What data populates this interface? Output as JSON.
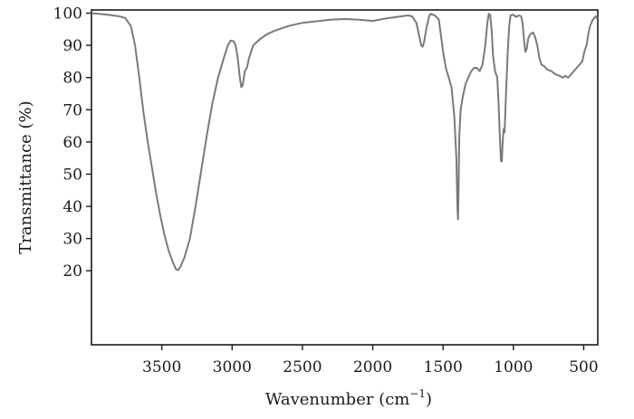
{
  "chart_data": {
    "type": "line",
    "xlabel": "Wavenumber (cm",
    "xlabel_sup": "−1",
    "xlabel_close": ")",
    "ylabel": "Transmittance (%)",
    "xlim": [
      4000,
      400
    ],
    "ylim": [
      -3,
      101
    ],
    "x_reversed": true,
    "grid": false,
    "x_ticks": [
      3500,
      3000,
      2500,
      2000,
      1500,
      1000,
      500
    ],
    "y_ticks": [
      20,
      30,
      40,
      50,
      60,
      70,
      80,
      90,
      100
    ],
    "series": [
      {
        "color": "#7a7a7a",
        "points": [
          [
            4000,
            100
          ],
          [
            3950,
            99.8
          ],
          [
            3900,
            99.6
          ],
          [
            3850,
            99.3
          ],
          [
            3800,
            99
          ],
          [
            3760,
            98.5
          ],
          [
            3720,
            96
          ],
          [
            3690,
            90
          ],
          [
            3660,
            80
          ],
          [
            3630,
            69
          ],
          [
            3600,
            60
          ],
          [
            3570,
            52
          ],
          [
            3540,
            44
          ],
          [
            3510,
            37
          ],
          [
            3480,
            31
          ],
          [
            3450,
            26
          ],
          [
            3420,
            22.5
          ],
          [
            3400,
            20.5
          ],
          [
            3385,
            20.2
          ],
          [
            3370,
            21
          ],
          [
            3340,
            24
          ],
          [
            3300,
            30
          ],
          [
            3260,
            40
          ],
          [
            3220,
            51
          ],
          [
            3180,
            62
          ],
          [
            3140,
            72
          ],
          [
            3100,
            80
          ],
          [
            3060,
            86
          ],
          [
            3030,
            90
          ],
          [
            3010,
            91.5
          ],
          [
            2990,
            91.3
          ],
          [
            2975,
            90
          ],
          [
            2960,
            86
          ],
          [
            2945,
            80
          ],
          [
            2935,
            77
          ],
          [
            2925,
            77.5
          ],
          [
            2910,
            82
          ],
          [
            2895,
            83
          ],
          [
            2880,
            86
          ],
          [
            2850,
            90
          ],
          [
            2800,
            92
          ],
          [
            2750,
            93.5
          ],
          [
            2700,
            94.5
          ],
          [
            2600,
            96
          ],
          [
            2500,
            97
          ],
          [
            2400,
            97.5
          ],
          [
            2300,
            98
          ],
          [
            2200,
            98.2
          ],
          [
            2100,
            98
          ],
          [
            2000,
            97.6
          ],
          [
            1950,
            98
          ],
          [
            1900,
            98.4
          ],
          [
            1850,
            98.7
          ],
          [
            1800,
            99
          ],
          [
            1750,
            99.3
          ],
          [
            1720,
            99
          ],
          [
            1690,
            97
          ],
          [
            1670,
            93
          ],
          [
            1655,
            90
          ],
          [
            1645,
            89.6
          ],
          [
            1635,
            91
          ],
          [
            1620,
            95
          ],
          [
            1600,
            99
          ],
          [
            1590,
            99.8
          ],
          [
            1570,
            99.5
          ],
          [
            1550,
            99
          ],
          [
            1530,
            98
          ],
          [
            1515,
            93
          ],
          [
            1500,
            88
          ],
          [
            1480,
            83
          ],
          [
            1460,
            80
          ],
          [
            1440,
            77
          ],
          [
            1420,
            68
          ],
          [
            1405,
            55
          ],
          [
            1398,
            40
          ],
          [
            1394,
            36
          ],
          [
            1390,
            45
          ],
          [
            1385,
            62
          ],
          [
            1375,
            70
          ],
          [
            1360,
            74
          ],
          [
            1340,
            78
          ],
          [
            1320,
            80
          ],
          [
            1300,
            82
          ],
          [
            1280,
            83
          ],
          [
            1260,
            83
          ],
          [
            1240,
            82
          ],
          [
            1220,
            84
          ],
          [
            1200,
            90
          ],
          [
            1185,
            97
          ],
          [
            1175,
            99.8
          ],
          [
            1165,
            99.5
          ],
          [
            1155,
            95
          ],
          [
            1145,
            87
          ],
          [
            1130,
            82
          ],
          [
            1115,
            80
          ],
          [
            1105,
            72
          ],
          [
            1095,
            60
          ],
          [
            1088,
            54
          ],
          [
            1082,
            54
          ],
          [
            1076,
            60
          ],
          [
            1070,
            64
          ],
          [
            1063,
            63
          ],
          [
            1058,
            68
          ],
          [
            1050,
            78
          ],
          [
            1040,
            88
          ],
          [
            1030,
            96
          ],
          [
            1020,
            99.3
          ],
          [
            1000,
            99.5
          ],
          [
            980,
            98.8
          ],
          [
            960,
            99.3
          ],
          [
            945,
            99
          ],
          [
            935,
            97
          ],
          [
            925,
            92
          ],
          [
            915,
            88
          ],
          [
            905,
            89
          ],
          [
            895,
            92
          ],
          [
            880,
            93.5
          ],
          [
            860,
            94
          ],
          [
            845,
            92.5
          ],
          [
            830,
            90
          ],
          [
            815,
            86
          ],
          [
            800,
            84
          ],
          [
            780,
            83.5
          ],
          [
            760,
            82.5
          ],
          [
            730,
            82
          ],
          [
            700,
            81
          ],
          [
            670,
            80.5
          ],
          [
            650,
            80
          ],
          [
            630,
            80.5
          ],
          [
            610,
            80
          ],
          [
            590,
            81
          ],
          [
            570,
            82
          ],
          [
            550,
            83
          ],
          [
            530,
            84
          ],
          [
            510,
            85
          ],
          [
            495,
            88
          ],
          [
            480,
            90
          ],
          [
            465,
            94
          ],
          [
            455,
            96
          ],
          [
            445,
            97
          ],
          [
            435,
            98
          ],
          [
            425,
            98.5
          ],
          [
            415,
            99
          ],
          [
            405,
            98.5
          ]
        ]
      }
    ]
  }
}
